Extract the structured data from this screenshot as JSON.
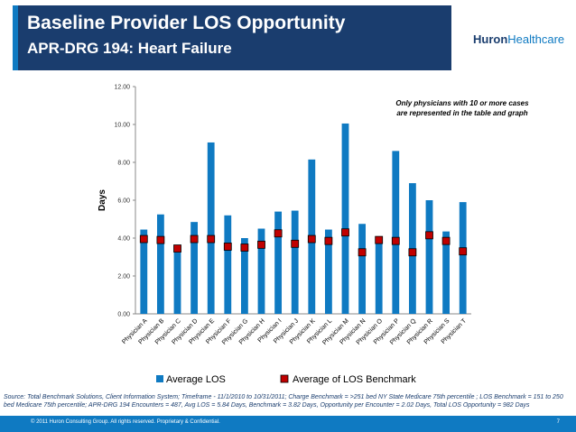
{
  "header": {
    "title": "Baseline Provider LOS Opportunity",
    "subtitle": "APR-DRG 194: Heart Failure",
    "logo_bold": "Huron",
    "logo_light": "Healthcare"
  },
  "colors": {
    "bar": "#0f7ac2",
    "marker": "#c00000",
    "header": "#1a3d6e"
  },
  "chart_data": {
    "type": "bar",
    "ylabel": "Days",
    "ylim": [
      0,
      12
    ],
    "yticks": [
      "0.00",
      "2.00",
      "4.00",
      "6.00",
      "8.00",
      "10.00",
      "12.00"
    ],
    "annotation": [
      "Only physicians with 10 or more cases",
      "are represented in the table and graph"
    ],
    "categories": [
      "Physician A",
      "Physician B",
      "Physician C",
      "Physician D",
      "Physician E",
      "Physician F",
      "Physician G",
      "Physician H",
      "Physician I",
      "Physician J",
      "Physician K",
      "Physician L",
      "Physician M",
      "Physician N",
      "Physician O",
      "Physician P",
      "Physician Q",
      "Physician R",
      "Physician S",
      "Physician T"
    ],
    "series": [
      {
        "name": "Average LOS",
        "kind": "bar",
        "values": [
          4.45,
          5.25,
          3.25,
          4.85,
          9.05,
          5.2,
          4.0,
          4.5,
          5.4,
          5.45,
          8.15,
          4.45,
          10.05,
          4.75,
          3.9,
          8.6,
          6.9,
          6.0,
          4.35,
          5.9
        ]
      },
      {
        "name": "Average of LOS Benchmark",
        "kind": "marker",
        "values": [
          3.95,
          3.9,
          3.45,
          3.95,
          3.95,
          3.55,
          3.5,
          3.65,
          4.25,
          3.7,
          3.95,
          3.85,
          4.3,
          3.25,
          3.9,
          3.85,
          3.25,
          4.15,
          3.85,
          3.3
        ]
      }
    ]
  },
  "source_text": "Source: Total Benchmark Solutions, Client Information System; Timeframe - 11/1/2010 to 10/31/2011; Charge Benchmark = >251 bed NY State Medicare 75th percentile ; LOS Benchmark = 151 to 250 bed Medicare 75th percentile; APR-DRG 194 Encounters = 487, Avg LOS = 5.84 Days, Benchmark = 3.82 Days, Opportunity per Encounter = 2.02 Days, Total LOS Opportunity = 982 Days",
  "footer": {
    "copyright": "© 2011 Huron Consulting Group. All rights reserved. Proprietary & Confidential.",
    "page": "7"
  }
}
